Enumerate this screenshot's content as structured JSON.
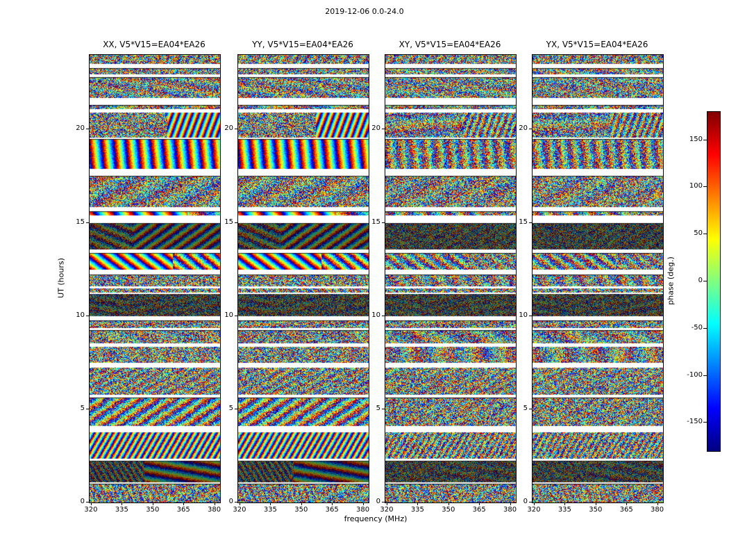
{
  "figure": {
    "title": "2019-12-06 0.0-24.0",
    "xlabel": "frequency (MHz)",
    "ylabel": "UT (hours)"
  },
  "panels": [
    {
      "id": "XX",
      "title": "XX, V5*V15=EA04*EA26"
    },
    {
      "id": "YY",
      "title": "YY, V5*V15=EA04*EA26"
    },
    {
      "id": "XY",
      "title": "XY, V5*V15=EA04*EA26"
    },
    {
      "id": "YX",
      "title": "YX, V5*V15=EA04*EA26"
    }
  ],
  "axes": {
    "x_ticks": [
      320,
      335,
      350,
      365,
      380
    ],
    "y_ticks": [
      0,
      5,
      10,
      15,
      20
    ]
  },
  "colorbar": {
    "label": "phase (deg.)",
    "ticks": [
      150,
      100,
      50,
      0,
      -50,
      -100,
      -150
    ],
    "colormap": "jet",
    "range": [
      -180,
      180
    ]
  },
  "chart_data": {
    "type": "heatmap",
    "title": "2019-12-06 0.0-24.0",
    "xlabel": "frequency (MHz)",
    "ylabel": "UT (hours)",
    "value_label": "phase (deg.)",
    "x_range": [
      319,
      382.5
    ],
    "y_range": [
      0,
      24
    ],
    "value_range": [
      -180,
      180
    ],
    "colormap": "jet",
    "x_ticks": [
      320,
      335,
      350,
      365,
      380
    ],
    "y_ticks": [
      0,
      5,
      10,
      15,
      20
    ],
    "colorbar_ticks": [
      150,
      100,
      50,
      0,
      -50,
      -100,
      -150
    ],
    "panels": [
      "XX, V5*V15=EA04*EA26",
      "YY, V5*V15=EA04*EA26",
      "XY, V5*V15=EA04*EA26",
      "YX, V5*V15=EA04*EA26"
    ],
    "data_description": "Four dynamic-spectrum panels of interferometric visibility phase (deg., jet colormap, wrapped -180..180) versus frequency (MHz, horizontal) and UT time (hours, vertical) for the four polarization products of baseline V5*V15=EA04*EA26; content is dense pseudo-random phase fringes in horizontal scan bands separated by white time gaps, individual values not resolvable at screenshot scale"
  }
}
